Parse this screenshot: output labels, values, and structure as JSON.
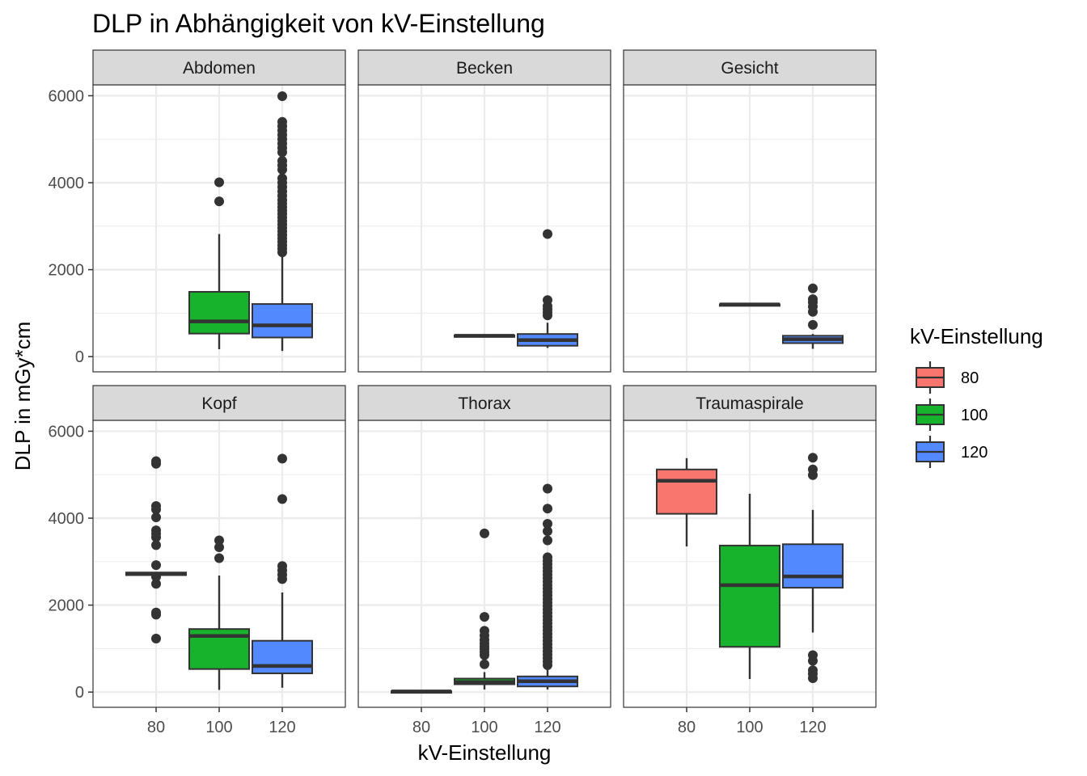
{
  "chart_data": {
    "type": "boxplot",
    "title": "DLP in Abhängigkeit von kV-Einstellung",
    "xlabel": "kV-Einstellung",
    "ylabel": "DLP in mGy*cm",
    "x_categories": [
      "80",
      "100",
      "120"
    ],
    "ylim": [
      -350,
      6250
    ],
    "y_ticks": [
      0,
      2000,
      4000,
      6000
    ],
    "grid": true,
    "legend": {
      "title": "kV-Einstellung",
      "position": "right",
      "items": [
        {
          "label": "80",
          "color": "#F8766D"
        },
        {
          "label": "100",
          "color": "#18B32C"
        },
        {
          "label": "120",
          "color": "#5289FF"
        }
      ]
    },
    "facets": [
      {
        "name": "Abdomen",
        "boxes": [
          {
            "kv": "100",
            "min": 170,
            "q1": 530,
            "median": 810,
            "q3": 1490,
            "max": 2820,
            "outliers": [
              3570,
              4010
            ]
          },
          {
            "kv": "120",
            "min": 130,
            "q1": 440,
            "median": 720,
            "q3": 1210,
            "max": 2320,
            "outliers": [
              2400,
              2480,
              2560,
              2640,
              2720,
              2800,
              2880,
              2960,
              3040,
              3120,
              3200,
              3280,
              3360,
              3440,
              3520,
              3600,
              3700,
              3800,
              3900,
              4000,
              4100,
              4300,
              4400,
              4500,
              4700,
              4800,
              4900,
              5000,
              5100,
              5200,
              5300,
              5400,
              5990
            ]
          }
        ]
      },
      {
        "name": "Becken",
        "boxes": [
          {
            "kv": "100",
            "min": 470,
            "q1": 470,
            "median": 480,
            "q3": 490,
            "max": 490,
            "outliers": []
          },
          {
            "kv": "120",
            "min": 200,
            "q1": 250,
            "median": 380,
            "q3": 520,
            "max": 780,
            "outliers": [
              950,
              1020,
              1090,
              1160,
              1300,
              2820
            ]
          }
        ]
      },
      {
        "name": "Gesicht",
        "boxes": [
          {
            "kv": "100",
            "min": 1190,
            "q1": 1195,
            "median": 1200,
            "q3": 1205,
            "max": 1210,
            "outliers": []
          },
          {
            "kv": "120",
            "min": 180,
            "q1": 310,
            "median": 400,
            "q3": 480,
            "max": 520,
            "outliers": [
              730,
              1030,
              1150,
              1250,
              1320,
              1570
            ]
          }
        ]
      },
      {
        "name": "Kopf",
        "boxes": [
          {
            "kv": "80",
            "min": 2690,
            "q1": 2690,
            "median": 2720,
            "q3": 2750,
            "max": 2750,
            "outliers": [
              1230,
              1780,
              1830,
              2490,
              2650,
              2920,
              3380,
              3560,
              3640,
              3720,
              4020,
              4200,
              4280,
              5250,
              5310
            ]
          },
          {
            "kv": "100",
            "min": 50,
            "q1": 530,
            "median": 1290,
            "q3": 1450,
            "max": 2680,
            "outliers": [
              3080,
              3330,
              3490
            ]
          },
          {
            "kv": "120",
            "min": 100,
            "q1": 430,
            "median": 600,
            "q3": 1180,
            "max": 2290,
            "outliers": [
              2600,
              2700,
              2800,
              2900,
              4440,
              5370
            ]
          }
        ]
      },
      {
        "name": "Thorax",
        "boxes": [
          {
            "kv": "80",
            "min": 10,
            "q1": 10,
            "median": 15,
            "q3": 20,
            "max": 20,
            "outliers": []
          },
          {
            "kv": "100",
            "min": 60,
            "q1": 180,
            "median": 230,
            "q3": 310,
            "max": 460,
            "outliers": [
              640,
              850,
              920,
              990,
              1050,
              1120,
              1200,
              1300,
              1410,
              1730,
              3650
            ]
          },
          {
            "kv": "120",
            "min": 60,
            "q1": 130,
            "median": 250,
            "q3": 360,
            "max": 560,
            "outliers": [
              620,
              700,
              780,
              860,
              940,
              1020,
              1100,
              1180,
              1260,
              1340,
              1420,
              1500,
              1580,
              1660,
              1740,
              1820,
              1900,
              1980,
              2060,
              2140,
              2220,
              2300,
              2380,
              2460,
              2540,
              2620,
              2700,
              2780,
              2860,
              2940,
              3020,
              3100,
              3490,
              3700,
              3870,
              4220,
              4680
            ]
          }
        ]
      },
      {
        "name": "Traumaspirale",
        "boxes": [
          {
            "kv": "80",
            "min": 3350,
            "q1": 4100,
            "median": 4860,
            "q3": 5120,
            "max": 5380,
            "outliers": []
          },
          {
            "kv": "100",
            "min": 300,
            "q1": 1040,
            "median": 2460,
            "q3": 3370,
            "max": 4560,
            "outliers": []
          },
          {
            "kv": "120",
            "min": 1370,
            "q1": 2400,
            "median": 2660,
            "q3": 3400,
            "max": 4190,
            "outliers": [
              320,
              420,
              500,
              720,
              850,
              4990,
              5120,
              5390
            ]
          }
        ]
      }
    ]
  }
}
